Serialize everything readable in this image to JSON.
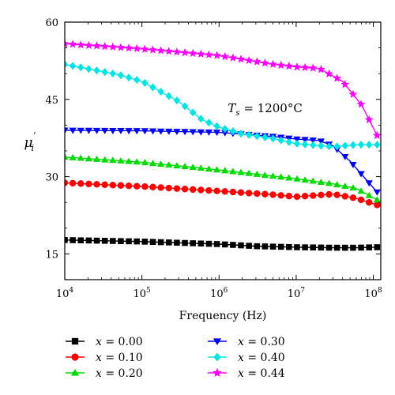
{
  "chart_data": {
    "type": "line",
    "xlabel": "Frequency (Hz)",
    "ylabel": "μ′ i",
    "x_scale": "log",
    "xlim": [
      10000,
      125000000
    ],
    "ylim": [
      10,
      60
    ],
    "x_ticks": [
      10000,
      100000,
      1000000,
      10000000,
      100000000
    ],
    "y_ticks": [
      15,
      30,
      45,
      60
    ],
    "y_tick_labels": [
      "15",
      "30",
      "45",
      "60"
    ],
    "annotation": {
      "prefix": "T",
      "sub": "s",
      "value": " = 1200°C",
      "at_x": 1300000,
      "at_y": 42.5
    },
    "legend_position": "bottom",
    "series": [
      {
        "name": "x = 0.00",
        "color": "#000000",
        "marker": "square",
        "x": [
          10000,
          100000,
          1000000,
          3000000,
          10000000,
          30000000,
          60000000,
          112000000
        ],
        "y": [
          17.7,
          17.4,
          16.9,
          16.5,
          16.3,
          16.2,
          16.2,
          16.3
        ]
      },
      {
        "name": "x = 0.10",
        "color": "#ff0000",
        "marker": "circle",
        "x": [
          10000,
          100000,
          1000000,
          5000000,
          10000000,
          30000000,
          60000000,
          112000000
        ],
        "y": [
          28.8,
          28.1,
          27.2,
          26.5,
          26.1,
          26.6,
          25.8,
          24.5
        ]
      },
      {
        "name": "x = 0.20",
        "color": "#00dd00",
        "marker": "triangle-up",
        "x": [
          10000,
          100000,
          1000000,
          10000000,
          30000000,
          60000000,
          112000000
        ],
        "y": [
          33.8,
          32.8,
          31.3,
          29.6,
          28.6,
          27.7,
          25.5
        ]
      },
      {
        "name": "x = 0.30",
        "color": "#0000ff",
        "marker": "triangle-down",
        "x": [
          10000,
          100000,
          1000000,
          5000000,
          10000000,
          20000000,
          30000000,
          50000000,
          80000000,
          112000000
        ],
        "y": [
          39.0,
          38.9,
          38.6,
          37.8,
          37.3,
          37.0,
          36.0,
          33.0,
          29.5,
          27.0
        ]
      },
      {
        "name": "x = 0.40",
        "color": "#00e5e5",
        "marker": "diamond",
        "x": [
          10000,
          50000,
          100000,
          300000,
          600000,
          1000000,
          2000000,
          5000000,
          10000000,
          30000000,
          60000000,
          112000000
        ],
        "y": [
          51.8,
          49.8,
          48.5,
          44.6,
          41.1,
          39.6,
          38.3,
          37.4,
          36.4,
          35.8,
          36.2,
          36.2
        ]
      },
      {
        "name": "x = 0.44",
        "color": "#ff00ff",
        "marker": "star",
        "x": [
          10000,
          100000,
          1000000,
          5000000,
          10000000,
          20000000,
          40000000,
          70000000,
          112000000
        ],
        "y": [
          55.8,
          54.8,
          53.5,
          51.8,
          51.3,
          51.0,
          48.5,
          44.0,
          38.0
        ]
      }
    ]
  }
}
